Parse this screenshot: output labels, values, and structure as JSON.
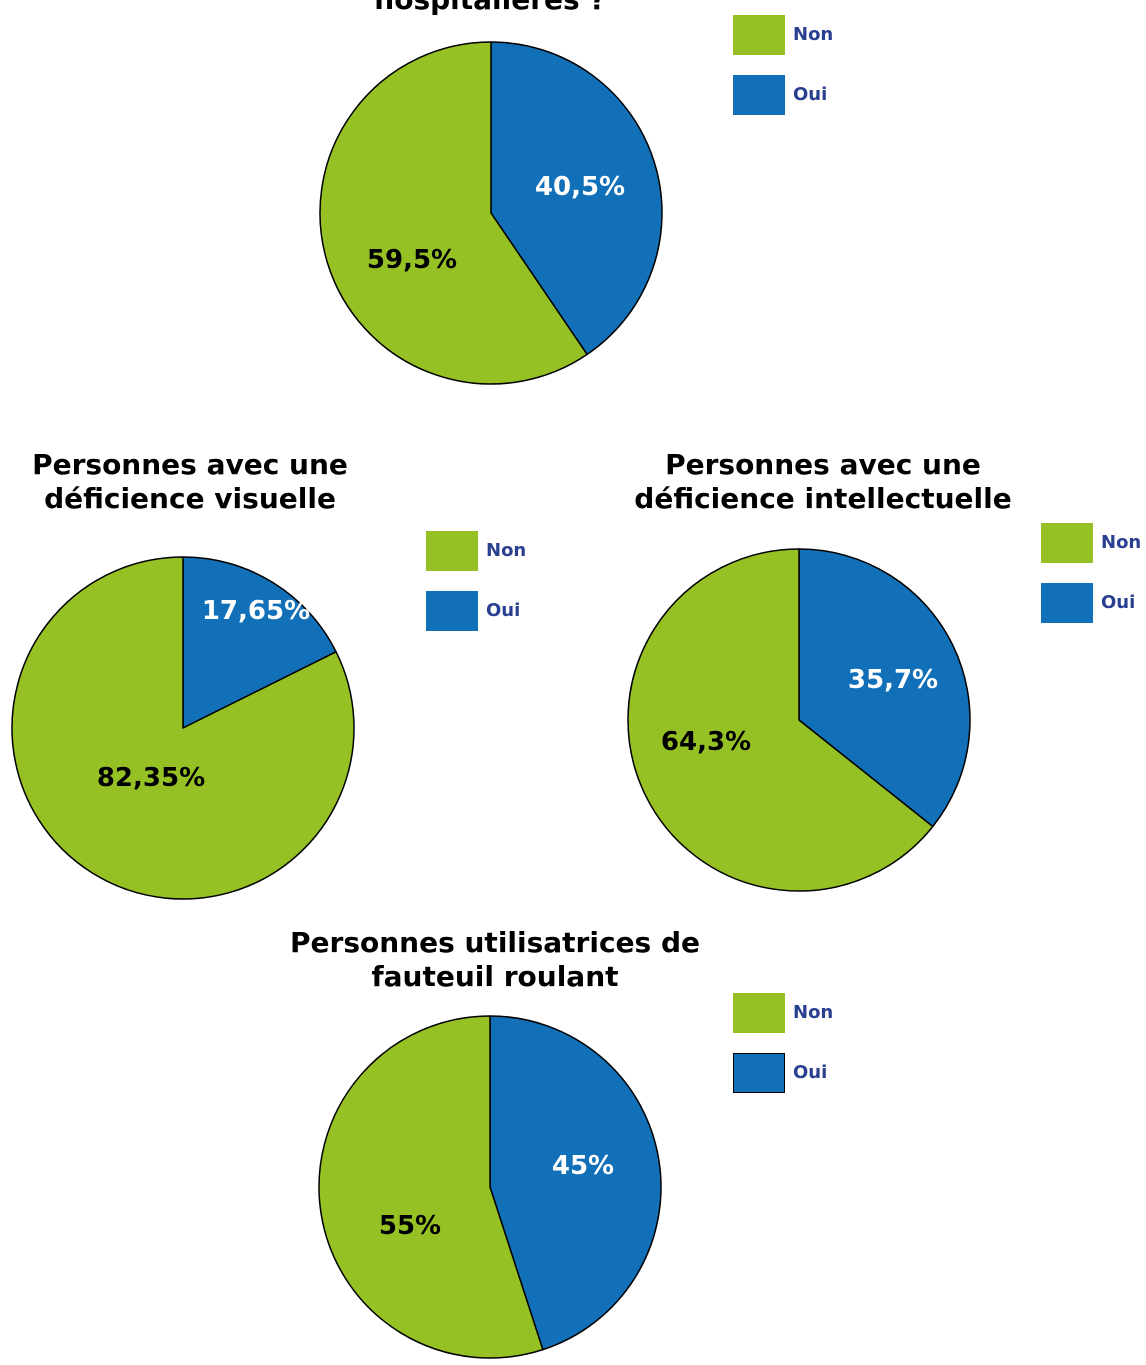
{
  "colors": {
    "non": "#95c125",
    "oui": "#1270b8"
  },
  "chart_data": [
    {
      "type": "pie",
      "title_lines": [
        "hospitalières ?"
      ],
      "slices": [
        {
          "label": "Oui",
          "value": 40.5,
          "text": "40,5%"
        },
        {
          "label": "Non",
          "value": 59.5,
          "text": "59,5%"
        }
      ],
      "legend": [
        "Non",
        "Oui"
      ],
      "legend_position": "right"
    },
    {
      "type": "pie",
      "title_lines": [
        "Personnes avec une",
        "déficience visuelle"
      ],
      "slices": [
        {
          "label": "Oui",
          "value": 17.65,
          "text": "17,65%"
        },
        {
          "label": "Non",
          "value": 82.35,
          "text": "82,35%"
        }
      ],
      "legend": [
        "Non",
        "Oui"
      ],
      "legend_position": "right"
    },
    {
      "type": "pie",
      "title_lines": [
        "Personnes avec une",
        "déficience intellectuelle"
      ],
      "slices": [
        {
          "label": "Oui",
          "value": 35.7,
          "text": "35,7%"
        },
        {
          "label": "Non",
          "value": 64.3,
          "text": "64,3%"
        }
      ],
      "legend": [
        "Non",
        "Oui"
      ],
      "legend_position": "right"
    },
    {
      "type": "pie",
      "title_lines": [
        "Personnes utilisatrices de",
        "fauteuil roulant"
      ],
      "slices": [
        {
          "label": "Oui",
          "value": 45,
          "text": "45%"
        },
        {
          "label": "Non",
          "value": 55,
          "text": "55%"
        }
      ],
      "legend": [
        "Non",
        "Oui"
      ],
      "legend_position": "right"
    }
  ]
}
